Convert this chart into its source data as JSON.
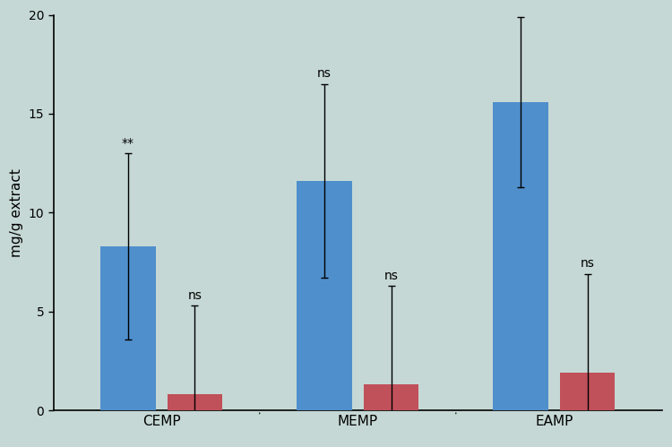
{
  "categories": [
    "CEMP",
    "MEMP",
    "EAMP"
  ],
  "blue_values": [
    8.3,
    11.6,
    15.6
  ],
  "red_values": [
    0.8,
    1.3,
    1.9
  ],
  "blue_errors": [
    4.7,
    4.9,
    4.3
  ],
  "red_errors": [
    4.5,
    5.0,
    5.0
  ],
  "blue_color": "#4F8FCC",
  "red_color": "#C0505A",
  "background_color": "#C5D8D5",
  "ylabel": "mg/g extract",
  "ylim": [
    0,
    20
  ],
  "yticks": [
    0,
    5,
    10,
    15,
    20
  ],
  "blue_annotations": [
    "**",
    "ns",
    ""
  ],
  "red_annotations": [
    "ns",
    "ns",
    "ns"
  ],
  "bar_width": 0.28,
  "figsize": [
    7.5,
    4.99
  ],
  "dpi": 100
}
